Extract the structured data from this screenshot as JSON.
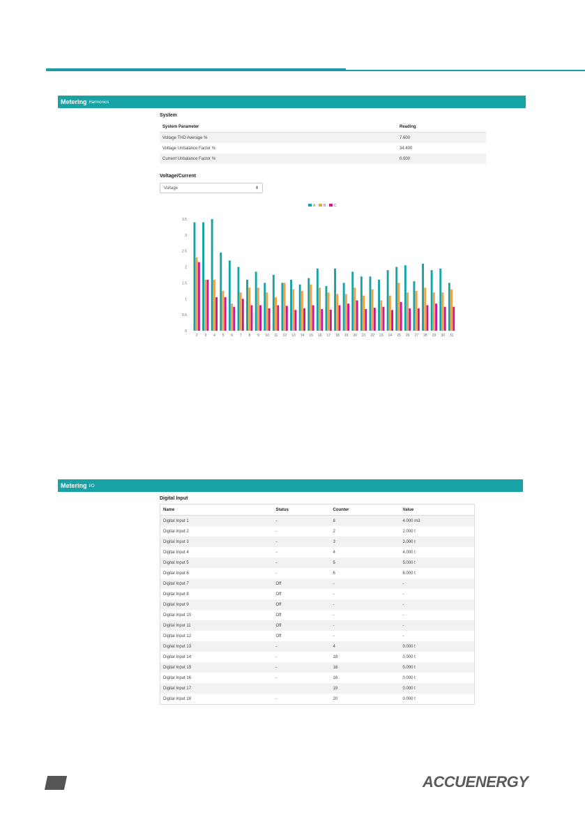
{
  "harmonics_section": {
    "title": "Metering",
    "subtitle": "Harmonics",
    "system_heading": "System",
    "table_headers": [
      "System Parameter",
      "Reading"
    ],
    "rows": [
      [
        "Voltage THD Average %",
        "7.600"
      ],
      [
        "Voltage Unbalance Factor %",
        "34.400"
      ],
      [
        "Current Unbalance Factor %",
        "0.000"
      ]
    ],
    "vc_label": "Voltage/Current",
    "vc_selected": "Voltage"
  },
  "chart_data": {
    "type": "bar",
    "title": "",
    "xlabel": "",
    "ylabel": "",
    "ylim": [
      0,
      3.5
    ],
    "yticks": [
      "0",
      "0.5",
      "1",
      "1.5",
      "2",
      "2.5",
      "3",
      "3.5"
    ],
    "legend_position": "top-center",
    "grid": false,
    "categories": [
      "2",
      "3",
      "4",
      "5",
      "6",
      "7",
      "8",
      "9",
      "10",
      "11",
      "12",
      "13",
      "14",
      "15",
      "16",
      "17",
      "18",
      "19",
      "20",
      "21",
      "22",
      "23",
      "24",
      "25",
      "26",
      "27",
      "28",
      "29",
      "30",
      "31"
    ],
    "series": [
      {
        "name": "A",
        "color": "#17a2a6",
        "values": [
          3.4,
          3.4,
          3.5,
          2.45,
          2.2,
          2.0,
          1.6,
          1.85,
          1.5,
          1.75,
          1.5,
          1.6,
          1.45,
          1.65,
          1.95,
          1.4,
          1.95,
          1.5,
          1.85,
          1.7,
          1.7,
          1.6,
          1.9,
          2.0,
          2.05,
          1.55,
          2.1,
          1.9,
          1.95,
          1.5
        ]
      },
      {
        "name": "B",
        "color": "#f5a040",
        "values": [
          2.3,
          1.6,
          1.6,
          1.25,
          0.85,
          1.2,
          1.35,
          1.35,
          1.2,
          1.05,
          1.5,
          1.3,
          1.25,
          1.45,
          1.35,
          1.2,
          1.15,
          1.15,
          1.35,
          1.1,
          1.3,
          0.95,
          1.1,
          1.5,
          1.2,
          1.25,
          1.35,
          1.2,
          1.2,
          1.3
        ]
      },
      {
        "name": "C",
        "color": "#c8189a",
        "values": [
          2.15,
          1.6,
          1.05,
          1.05,
          0.75,
          1.0,
          0.8,
          0.8,
          0.7,
          0.8,
          0.78,
          0.65,
          0.7,
          0.8,
          0.68,
          0.66,
          0.8,
          0.85,
          0.95,
          0.68,
          0.72,
          0.75,
          0.65,
          0.9,
          0.7,
          0.7,
          0.8,
          0.85,
          0.75,
          0.75
        ]
      }
    ]
  },
  "io_section": {
    "title": "Metering",
    "subtitle": "I/O",
    "digital_heading": "Digital Input",
    "table_headers": [
      "Name",
      "Status",
      "Counter",
      "Value"
    ],
    "rows": [
      [
        "Digital Input 1",
        "-",
        "8",
        "4.000 m3"
      ],
      [
        "Digital Input 2",
        "-",
        "2",
        "2.000 t"
      ],
      [
        "Digital Input 3",
        "-",
        "3",
        "3.000 t"
      ],
      [
        "Digital Input 4",
        "-",
        "4",
        "4.000 t"
      ],
      [
        "Digital Input 5",
        "-",
        "5",
        "5.000 t"
      ],
      [
        "Digital Input 6",
        "-",
        "6",
        "6.000 t"
      ],
      [
        "Digital Input 7",
        "Off",
        "-",
        "-"
      ],
      [
        "Digital Input 8",
        "Off",
        "-",
        "-"
      ],
      [
        "Digital Input 9",
        "Off",
        "-",
        "-"
      ],
      [
        "Digital Input 10",
        "Off",
        "-",
        "-"
      ],
      [
        "Digital Input 11",
        "Off",
        "-",
        "-"
      ],
      [
        "Digital Input 12",
        "Off",
        "-",
        "-"
      ],
      [
        "Digital Input 13",
        "-",
        "4",
        "0.000 t"
      ],
      [
        "Digital Input 14",
        "-",
        "18",
        "0.000 t"
      ],
      [
        "Digital Input 15",
        "-",
        "16",
        "0.000 t"
      ],
      [
        "Digital Input 16",
        "-",
        "16",
        "0.000 t"
      ],
      [
        "Digital Input 17",
        "",
        "19",
        "0.000 t"
      ],
      [
        "Digital Input 18",
        "-",
        "20",
        "0.000 t"
      ]
    ]
  },
  "footer": {
    "logo_text": "ACCUENERGY"
  }
}
